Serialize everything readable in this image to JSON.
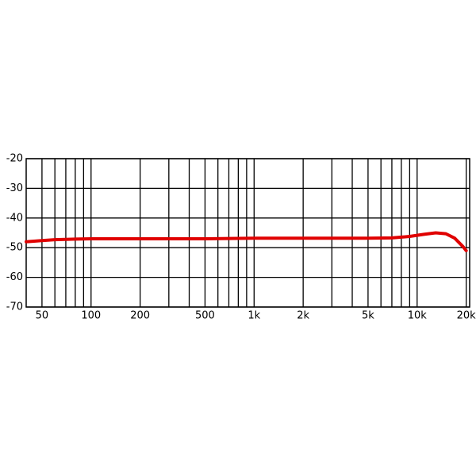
{
  "chart_data": {
    "type": "line",
    "xscale": "log",
    "grid": true,
    "xlim": [
      40,
      21000
    ],
    "ylim": [
      -70,
      -20
    ],
    "yticks": [
      -70,
      -60,
      -50,
      -40,
      -30,
      -20
    ],
    "xticks": [
      50,
      100,
      200,
      500,
      {
        "value": 1000,
        "label": "1k"
      },
      {
        "value": 2000,
        "label": "2k"
      },
      {
        "value": 5000,
        "label": "5k"
      },
      {
        "value": 10000,
        "label": "10k"
      },
      {
        "value": 20000,
        "label": "20k"
      }
    ],
    "xgrid": [
      50,
      60,
      70,
      80,
      90,
      100,
      200,
      300,
      400,
      500,
      600,
      700,
      800,
      900,
      1000,
      2000,
      3000,
      4000,
      5000,
      6000,
      7000,
      8000,
      9000,
      10000,
      20000
    ],
    "series": [
      {
        "color": "#e00000",
        "x": [
          40,
          50,
          60,
          80,
          100,
          200,
          500,
          1000,
          2000,
          5000,
          7000,
          9000,
          11000,
          13000,
          15000,
          17000,
          19000,
          20000
        ],
        "values": [
          -48,
          -47.6,
          -47.3,
          -47.1,
          -47,
          -47,
          -47,
          -46.8,
          -46.8,
          -46.8,
          -46.7,
          -46.2,
          -45.5,
          -45,
          -45.3,
          -46.8,
          -49.5,
          -51
        ]
      }
    ]
  }
}
